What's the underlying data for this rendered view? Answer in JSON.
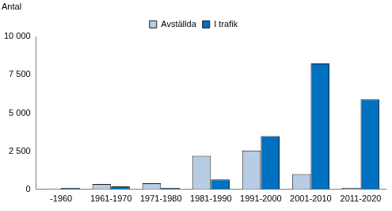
{
  "chart_data": {
    "type": "bar",
    "y_label": "Antal",
    "categories": [
      "-1960",
      "1961-1970",
      "1971-1980",
      "1981-1990",
      "1991-2000",
      "2001-2010",
      "2011-2020"
    ],
    "series": [
      {
        "name": "Avställda",
        "color": "#b8cce4",
        "values": [
          50,
          350,
          400,
          2200,
          2550,
          1000,
          100
        ]
      },
      {
        "name": "I trafik",
        "color": "#0070c0",
        "values": [
          100,
          200,
          100,
          650,
          3500,
          8250,
          5900
        ]
      }
    ],
    "ylim": [
      0,
      10000
    ],
    "yticks": [
      0,
      {
        "value": 2500,
        "label": "2 500"
      },
      {
        "value": 5000,
        "label": "5 000"
      },
      {
        "value": 7500,
        "label": "7 500"
      },
      {
        "value": 10000,
        "label": "10 000"
      }
    ],
    "grid": false,
    "legend": "top"
  }
}
